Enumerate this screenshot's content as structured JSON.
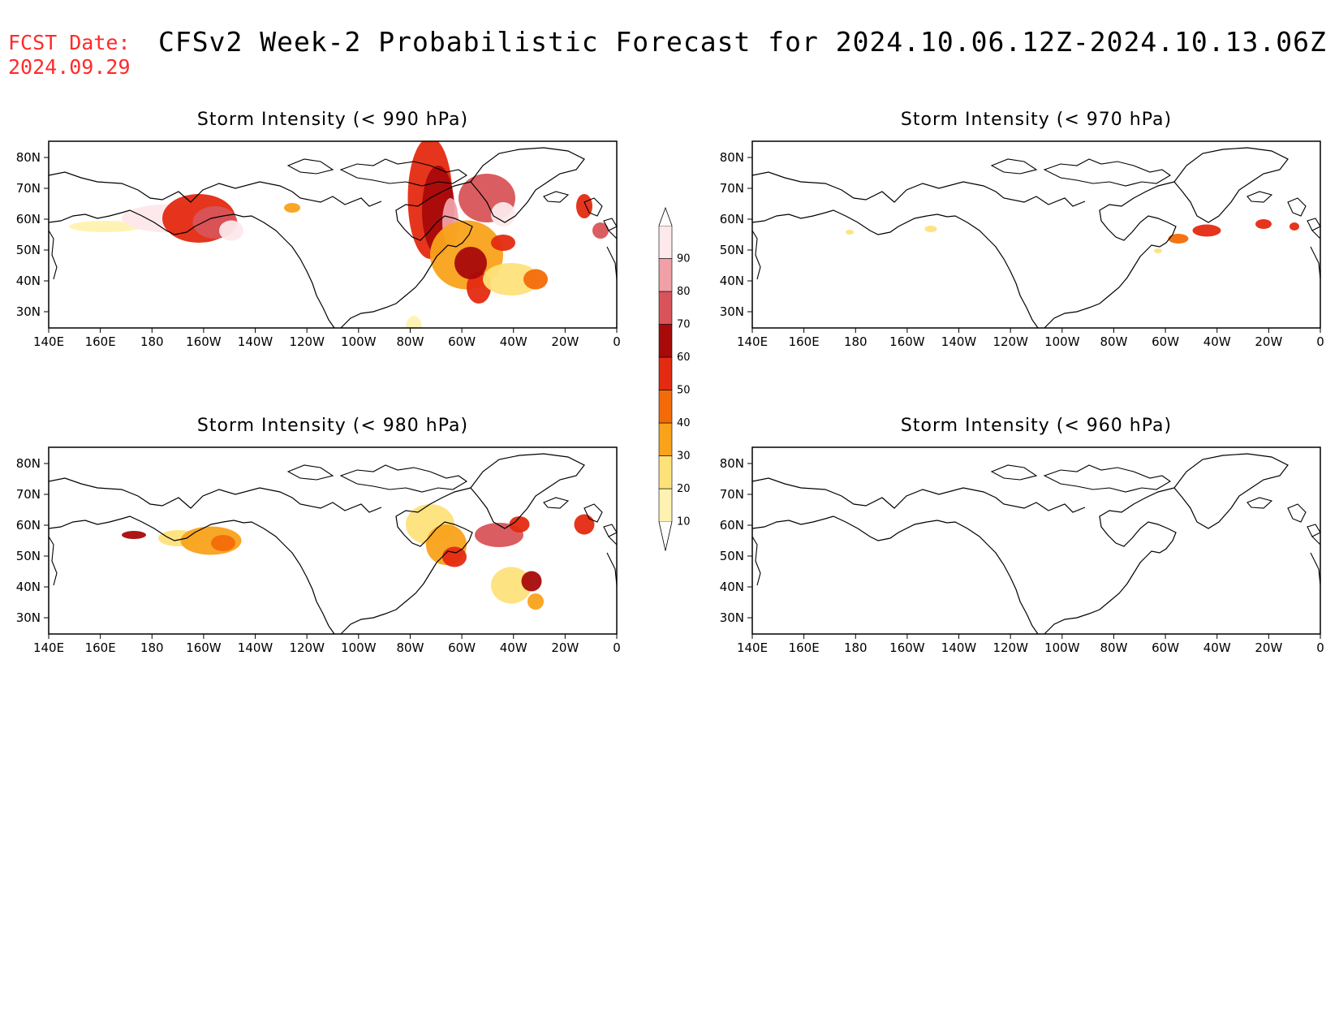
{
  "header": {
    "fcst_label": "FCST Date:",
    "fcst_date": "2024.09.29",
    "title": "CFSv2 Week-2 Probabilistic Forecast for 2024.10.06.12Z-2024.10.13.06Z"
  },
  "axes": {
    "x_ticks": [
      "140E",
      "160E",
      "180",
      "160W",
      "140W",
      "120W",
      "100W",
      "80W",
      "60W",
      "40W",
      "20W",
      "0"
    ],
    "y_ticks": [
      "80N",
      "70N",
      "60N",
      "50N",
      "40N",
      "30N"
    ]
  },
  "panels": [
    {
      "id": "p990",
      "title": "Storm Intensity (< 990 hPa)"
    },
    {
      "id": "p970",
      "title": "Storm Intensity (< 970 hPa)"
    },
    {
      "id": "p980",
      "title": "Storm Intensity (< 980 hPa)"
    },
    {
      "id": "p960",
      "title": "Storm Intensity (< 960 hPa)"
    }
  ],
  "colorbar": {
    "levels": [
      "10",
      "20",
      "30",
      "40",
      "50",
      "60",
      "70",
      "80",
      "90"
    ],
    "colors": [
      "#fff2b0",
      "#fde27a",
      "#f9a21a",
      "#f36b08",
      "#e42a10",
      "#a80a0a",
      "#d8545a",
      "#f0a0a6",
      "#fde8ea"
    ]
  }
}
